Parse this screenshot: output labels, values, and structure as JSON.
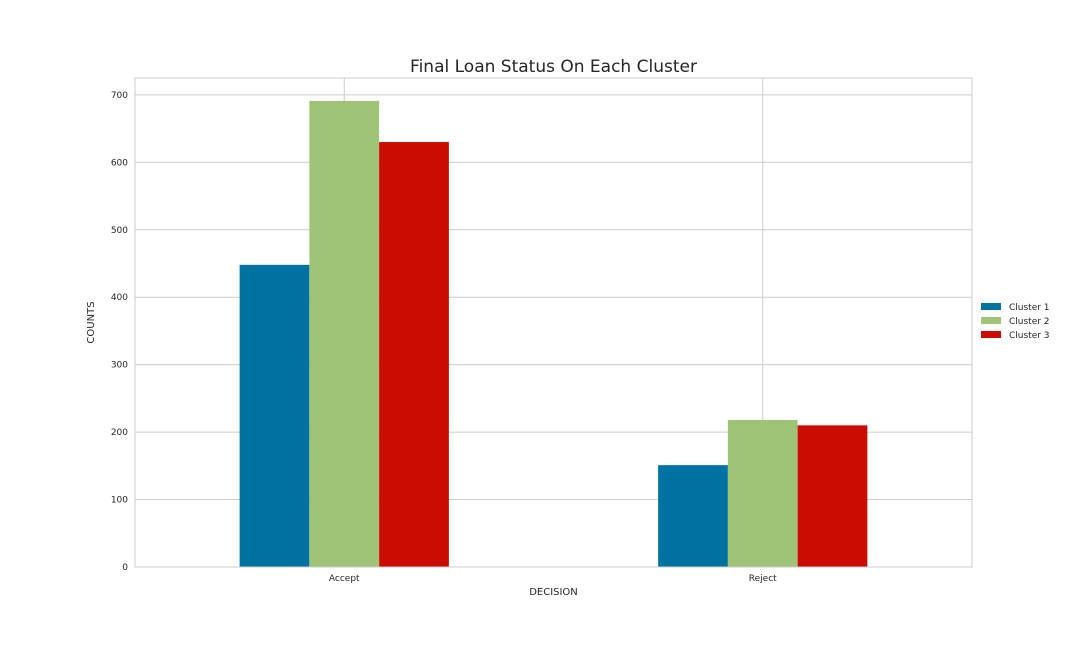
{
  "chart_data": {
    "type": "bar",
    "title": "Final Loan Status On Each Cluster",
    "xlabel": "DECISION",
    "ylabel": "COUNTS",
    "categories": [
      "Accept",
      "Reject"
    ],
    "series": [
      {
        "name": "Cluster 1",
        "values": [
          448,
          151
        ],
        "color": "#0072A2"
      },
      {
        "name": "Cluster 2",
        "values": [
          691,
          218
        ],
        "color": "#9FC377"
      },
      {
        "name": "Cluster 3",
        "values": [
          630,
          210
        ],
        "color": "#CA0C02"
      }
    ],
    "ylim": [
      0,
      725
    ],
    "yticks": [
      0,
      100,
      200,
      300,
      400,
      500,
      600,
      700
    ],
    "grid": true,
    "legend_position": "center-right outside plot"
  }
}
